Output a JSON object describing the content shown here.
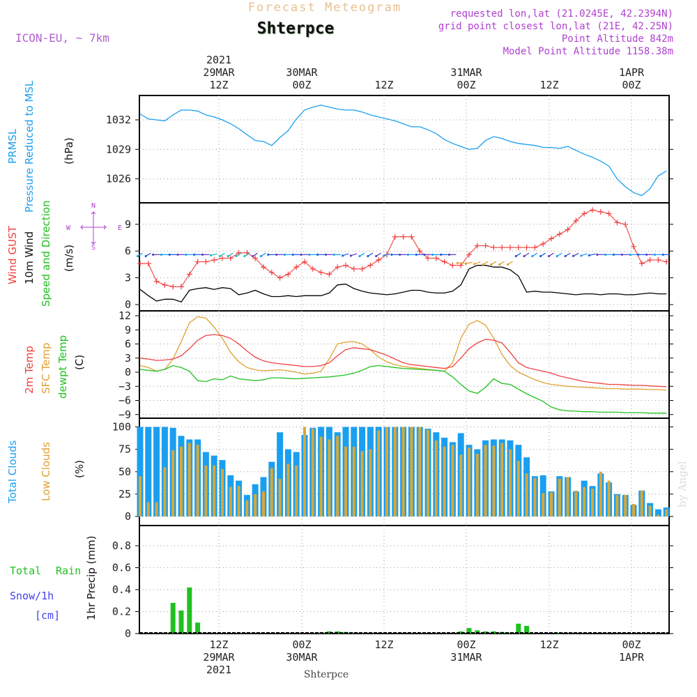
{
  "header": {
    "main_title": "Forecast Meteogram",
    "station": "Shterpce",
    "model": "ICON-EU, ~ 7km",
    "requested": "requested lon,lat (21.0245E, 42.2394N)",
    "gridpoint": "grid point closest lon,lat (21E, 42.25N)",
    "point_alt": "Point Altitude 842m",
    "model_alt": "Model Point Altitude 1158.38m"
  },
  "top_axis": {
    "labels": [
      {
        "l1": "2021",
        "l2": "29MAR",
        "l3": "12Z"
      },
      {
        "l1": "",
        "l2": "30MAR",
        "l3": "00Z"
      },
      {
        "l1": "",
        "l2": "",
        "l3": "12Z"
      },
      {
        "l1": "",
        "l2": "31MAR",
        "l3": "00Z"
      },
      {
        "l1": "",
        "l2": "",
        "l3": "12Z"
      },
      {
        "l1": "",
        "l2": "1APR",
        "l3": "00Z"
      }
    ]
  },
  "bottom_axis": {
    "labels": [
      {
        "l1": "12Z",
        "l2": "29MAR",
        "l3": "2021"
      },
      {
        "l1": "00Z",
        "l2": "30MAR",
        "l3": ""
      },
      {
        "l1": "12Z",
        "l2": "",
        "l3": ""
      },
      {
        "l1": "00Z",
        "l2": "31MAR",
        "l3": ""
      },
      {
        "l1": "12Z",
        "l2": "",
        "l3": ""
      },
      {
        "l1": "00Z",
        "l2": "1APR",
        "l3": ""
      }
    ],
    "station_footer": "Shterpce"
  },
  "watermark": "by Angel",
  "colors": {
    "pressure": "#1a9ff0",
    "gust": "#f04040",
    "wind": "#000000",
    "temp2m": "#f04040",
    "sfc": "#e0a030",
    "dewpt": "#20c020",
    "total_clouds": "#1a9ff0",
    "low_clouds": "#d8a838",
    "rain": "#20c020",
    "snow": "#4040f0",
    "compass": "#b040d0"
  },
  "panels": {
    "pressure": {
      "label1": "PRMSL",
      "label2": "Pressure Reduced to MSL",
      "unit": "(hPa)",
      "ticks": [
        "1032",
        "1029",
        "1026"
      ]
    },
    "wind": {
      "label_gust": "Wind GUST",
      "label_wind": "10m Wind",
      "label_dir": "Speed and Direction",
      "unit": "(m/s)",
      "ticks": [
        "9",
        "6",
        "3",
        "0"
      ],
      "compass": {
        "n": "N",
        "w": "W",
        "e": "E",
        "s": "S",
        "arrow_v": "^\n|\n-\n|\nv",
        "arrow_h": "<-->"
      }
    },
    "temp": {
      "label_2m": "2m Temp",
      "label_sfc": "SFC Temp",
      "label_dew": "dewpt Temp",
      "unit": "(C)",
      "ticks": [
        "12",
        "9",
        "6",
        "3",
        "0",
        "−3",
        "−6",
        "−9"
      ]
    },
    "clouds": {
      "label_total": "Total Clouds",
      "label_low": "Low Clouds",
      "unit": "(%)",
      "ticks": [
        "100",
        "75",
        "50",
        "25",
        "0"
      ]
    },
    "precip": {
      "label_rain1": "Total",
      "label_rain2": "Rain",
      "label_snow1": "Snow/1h",
      "label_snow2": "[cm]",
      "ylabel": "1hr Precip (mm)",
      "ticks": [
        "0.8",
        "0.6",
        "0.4",
        "0.2",
        "0"
      ]
    }
  },
  "chart_data": {
    "type": "line",
    "time_axis": {
      "start": "2021-03-29T04:00Z",
      "step_hours": 1,
      "count": 65
    },
    "pressure_hpa": [
      1032.6,
      1032.1,
      1032.0,
      1031.9,
      1032.5,
      1033.0,
      1033.0,
      1032.9,
      1032.5,
      1032.3,
      1032.0,
      1031.6,
      1031.1,
      1030.5,
      1029.9,
      1029.8,
      1029.4,
      1030.2,
      1030.9,
      1032.1,
      1033.0,
      1033.3,
      1033.5,
      1033.3,
      1033.1,
      1033.0,
      1033.0,
      1032.8,
      1032.5,
      1032.3,
      1032.1,
      1031.9,
      1031.6,
      1031.3,
      1031.3,
      1031.0,
      1030.6,
      1030.0,
      1029.6,
      1029.3,
      1029.0,
      1029.1,
      1029.9,
      1030.3,
      1030.1,
      1029.8,
      1029.6,
      1029.5,
      1029.4,
      1029.2,
      1029.2,
      1029.1,
      1029.3,
      1028.9,
      1028.5,
      1028.2,
      1027.8,
      1027.3,
      1026.0,
      1025.2,
      1024.6,
      1024.3,
      1025.0,
      1026.3,
      1026.8
    ],
    "gust_ms": [
      4.6,
      4.6,
      2.6,
      2.2,
      2.0,
      2.0,
      3.4,
      4.8,
      4.8,
      5.0,
      5.2,
      5.2,
      5.8,
      5.8,
      5.2,
      4.2,
      3.6,
      3.0,
      3.4,
      4.2,
      4.8,
      4.0,
      3.6,
      3.4,
      4.2,
      4.4,
      4.0,
      4.0,
      4.4,
      5.0,
      5.6,
      7.6,
      7.6,
      7.6,
      6.0,
      5.2,
      5.2,
      4.8,
      4.4,
      4.4,
      5.6,
      6.6,
      6.6,
      6.4,
      6.4,
      6.4,
      6.4,
      6.4,
      6.4,
      6.8,
      7.4,
      7.9,
      8.4,
      9.4,
      10.2,
      10.6,
      10.4,
      10.2,
      9.2,
      9.0,
      6.5,
      4.6,
      5.0,
      5.0,
      4.8
    ],
    "wind_ms": [
      1.7,
      1.0,
      0.4,
      0.6,
      0.6,
      0.3,
      1.6,
      1.8,
      1.9,
      1.7,
      1.9,
      1.8,
      1.1,
      1.3,
      1.6,
      1.2,
      0.9,
      0.9,
      1.0,
      0.9,
      1.0,
      1.0,
      1.0,
      1.3,
      2.2,
      2.3,
      1.8,
      1.5,
      1.3,
      1.2,
      1.1,
      1.2,
      1.4,
      1.6,
      1.6,
      1.4,
      1.3,
      1.3,
      1.5,
      2.2,
      4.0,
      4.4,
      4.4,
      4.2,
      4.2,
      3.9,
      3.2,
      1.4,
      1.5,
      1.4,
      1.4,
      1.3,
      1.2,
      1.1,
      1.2,
      1.2,
      1.1,
      1.2,
      1.2,
      1.1,
      1.1,
      1.2,
      1.3,
      1.2,
      1.2
    ],
    "temp_2m_c": [
      3.0,
      2.8,
      2.5,
      2.6,
      2.8,
      3.5,
      5.0,
      6.8,
      7.8,
      8.0,
      7.8,
      7.2,
      6.0,
      4.5,
      3.2,
      2.4,
      2.0,
      1.8,
      1.6,
      1.4,
      1.2,
      1.2,
      1.4,
      2.0,
      3.5,
      4.8,
      5.2,
      5.0,
      4.8,
      4.2,
      3.6,
      2.8,
      2.0,
      1.6,
      1.4,
      1.2,
      1.0,
      0.8,
      1.2,
      3.0,
      5.0,
      6.2,
      7.0,
      6.8,
      6.2,
      4.2,
      2.0,
      1.0,
      0.6,
      0.2,
      -0.2,
      -0.8,
      -1.2,
      -1.6,
      -2.0,
      -2.2,
      -2.4,
      -2.6,
      -2.6,
      -2.7,
      -2.8,
      -2.8,
      -2.9,
      -3.0,
      -3.1
    ],
    "sfc_temp_c": [
      1.4,
      1.0,
      0.2,
      0.6,
      2.8,
      6.5,
      10.5,
      11.8,
      11.5,
      9.6,
      7.2,
      4.2,
      2.2,
      1.0,
      0.5,
      0.3,
      0.4,
      0.5,
      0.3,
      0.0,
      -0.4,
      -0.2,
      0.2,
      2.8,
      6.0,
      6.4,
      6.5,
      6.0,
      4.8,
      3.2,
      2.2,
      1.6,
      1.2,
      1.0,
      0.8,
      0.6,
      0.4,
      0.2,
      2.0,
      7.2,
      10.2,
      11.0,
      10.0,
      7.2,
      3.8,
      1.4,
      0.0,
      -0.8,
      -1.6,
      -2.2,
      -2.6,
      -2.8,
      -3.0,
      -3.1,
      -3.2,
      -3.3,
      -3.4,
      -3.5,
      -3.5,
      -3.6,
      -3.6,
      -3.6,
      -3.7,
      -3.7,
      -3.8
    ],
    "dewpt_c": [
      0.6,
      0.4,
      0.2,
      0.6,
      1.4,
      1.0,
      0.2,
      -1.8,
      -2.0,
      -1.4,
      -1.6,
      -0.8,
      -1.4,
      -1.6,
      -1.8,
      -1.6,
      -1.2,
      -1.2,
      -1.3,
      -1.4,
      -1.3,
      -1.2,
      -1.1,
      -1.0,
      -0.8,
      -0.6,
      -0.2,
      0.4,
      1.2,
      1.4,
      1.2,
      1.0,
      0.8,
      0.7,
      0.6,
      0.5,
      0.4,
      0.2,
      -1.0,
      -2.6,
      -4.0,
      -4.5,
      -3.2,
      -1.4,
      -2.4,
      -2.6,
      -3.6,
      -4.6,
      -5.4,
      -6.2,
      -7.4,
      -8.0,
      -8.2,
      -8.3,
      -8.4,
      -8.4,
      -8.5,
      -8.5,
      -8.5,
      -8.6,
      -8.6,
      -8.6,
      -8.7,
      -8.7,
      -8.7
    ],
    "total_clouds_pct": [
      100,
      100,
      100,
      100,
      99,
      90,
      86,
      86,
      72,
      68,
      63,
      46,
      40,
      24,
      36,
      44,
      61,
      94,
      75,
      72,
      91,
      99,
      100,
      100,
      94,
      100,
      100,
      100,
      100,
      100,
      100,
      100,
      100,
      100,
      100,
      98,
      94,
      88,
      83,
      93,
      80,
      75,
      85,
      86,
      86,
      85,
      80,
      66,
      45,
      46,
      28,
      45,
      44,
      28,
      40,
      34,
      48,
      38,
      25,
      24,
      13,
      29,
      15,
      8,
      10
    ],
    "low_clouds_pct": [
      45,
      16,
      16,
      55,
      74,
      78,
      82,
      80,
      57,
      57,
      53,
      33,
      34,
      18,
      25,
      28,
      54,
      42,
      59,
      57,
      100,
      98,
      89,
      86,
      90,
      78,
      78,
      73,
      75,
      96,
      100,
      100,
      100,
      100,
      100,
      97,
      85,
      78,
      80,
      69,
      77,
      70,
      80,
      79,
      82,
      75,
      62,
      48,
      43,
      26,
      27,
      42,
      44,
      29,
      33,
      31,
      50,
      40,
      24,
      24,
      14,
      29,
      12,
      2,
      8
    ],
    "precip_mm": [
      0,
      0,
      0,
      0,
      0.28,
      0.21,
      0.42,
      0.1,
      0,
      0,
      0,
      0,
      0,
      0,
      0,
      0,
      0,
      0,
      0,
      0,
      0,
      0,
      0.01,
      0.02,
      0.02,
      0.015,
      0.01,
      0,
      0,
      0,
      0,
      0,
      0,
      0,
      0,
      0,
      0,
      0,
      0,
      0.02,
      0.05,
      0.03,
      0.02,
      0.02,
      0.015,
      0.01,
      0.09,
      0.07,
      0,
      0,
      0,
      0.005,
      0,
      0,
      0,
      0,
      0,
      0,
      0,
      0,
      0,
      0,
      0,
      0,
      0
    ],
    "wind_dir_deg": [
      225,
      225,
      270,
      270,
      270,
      270,
      270,
      270,
      270,
      250,
      225,
      225,
      225,
      225,
      225,
      225,
      270,
      270,
      270,
      270,
      270,
      270,
      270,
      270,
      270,
      240,
      240,
      225,
      225,
      225,
      240,
      270,
      270,
      270,
      270,
      270,
      270,
      270,
      270,
      270,
      250,
      240,
      225,
      225,
      225,
      225,
      225,
      225,
      225,
      225,
      225,
      225,
      225,
      230,
      240,
      250,
      270,
      270,
      270,
      270,
      270,
      270,
      270,
      270,
      270
    ],
    "pressure_range": [
      1024,
      1034.5
    ],
    "wind_range": [
      0,
      11
    ],
    "temp_range": [
      -9,
      12
    ],
    "clouds_range": [
      0,
      100
    ],
    "precip_range": [
      0,
      0.9
    ],
    "grid": true
  }
}
